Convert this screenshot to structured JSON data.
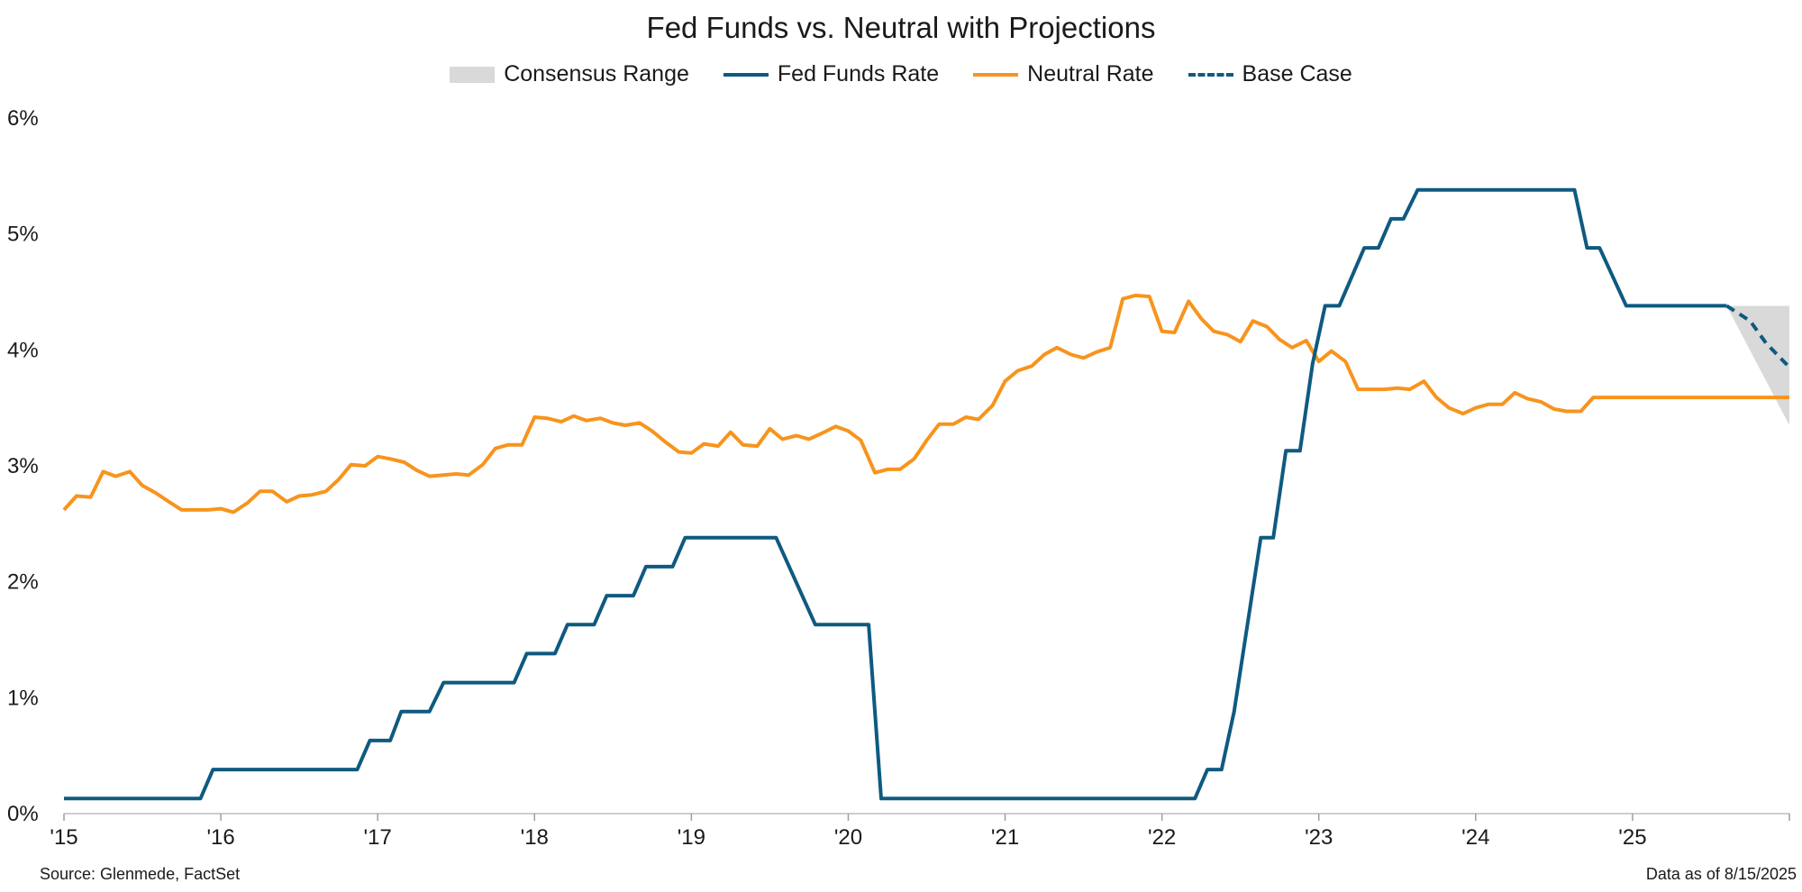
{
  "chart_data": {
    "type": "line",
    "title": "Fed Funds vs. Neutral with Projections",
    "xlabel": "",
    "ylabel": "",
    "xlim": [
      2015.0,
      2026.0
    ],
    "ylim": [
      0,
      6
    ],
    "y_ticks": [
      0,
      1,
      2,
      3,
      4,
      5,
      6
    ],
    "y_tick_labels": [
      "0%",
      "1%",
      "2%",
      "3%",
      "4%",
      "5%",
      "6%"
    ],
    "x_ticks": [
      2015,
      2016,
      2017,
      2018,
      2019,
      2020,
      2021,
      2022,
      2023,
      2024,
      2025
    ],
    "x_tick_labels": [
      "'15",
      "'16",
      "'17",
      "'18",
      "'19",
      "'20",
      "'21",
      "'22",
      "'23",
      "'24",
      "'25"
    ],
    "grid": false,
    "legend_position": "top-center",
    "legend": [
      "Consensus Range",
      "Fed Funds Rate",
      "Neutral Rate",
      "Base Case"
    ],
    "colors": {
      "fed_funds": "#0f5a80",
      "neutral": "#f7941d",
      "base_case": "#0f5a80",
      "consensus": "#d9d9d9"
    },
    "series": [
      {
        "name": "Fed Funds Rate",
        "points": [
          [
            2015.0,
            0.13
          ],
          [
            2015.87,
            0.13
          ],
          [
            2015.95,
            0.38
          ],
          [
            2016.87,
            0.38
          ],
          [
            2016.95,
            0.63
          ],
          [
            2017.08,
            0.63
          ],
          [
            2017.15,
            0.88
          ],
          [
            2017.33,
            0.88
          ],
          [
            2017.42,
            1.13
          ],
          [
            2017.87,
            1.13
          ],
          [
            2017.95,
            1.38
          ],
          [
            2018.13,
            1.38
          ],
          [
            2018.21,
            1.63
          ],
          [
            2018.38,
            1.63
          ],
          [
            2018.46,
            1.88
          ],
          [
            2018.63,
            1.88
          ],
          [
            2018.71,
            2.13
          ],
          [
            2018.88,
            2.13
          ],
          [
            2018.96,
            2.38
          ],
          [
            2019.54,
            2.38
          ],
          [
            2019.79,
            1.63
          ],
          [
            2020.13,
            1.63
          ],
          [
            2020.21,
            0.13
          ],
          [
            2022.21,
            0.13
          ],
          [
            2022.29,
            0.38
          ],
          [
            2022.38,
            0.38
          ],
          [
            2022.46,
            0.88
          ],
          [
            2022.63,
            2.38
          ],
          [
            2022.71,
            2.38
          ],
          [
            2022.79,
            3.13
          ],
          [
            2022.88,
            3.13
          ],
          [
            2022.96,
            3.88
          ],
          [
            2023.04,
            4.38
          ],
          [
            2023.13,
            4.38
          ],
          [
            2023.29,
            4.88
          ],
          [
            2023.38,
            4.88
          ],
          [
            2023.46,
            5.13
          ],
          [
            2023.54,
            5.13
          ],
          [
            2023.63,
            5.38
          ],
          [
            2024.63,
            5.38
          ],
          [
            2024.71,
            4.88
          ],
          [
            2024.79,
            4.88
          ],
          [
            2024.96,
            4.38
          ],
          [
            2025.6,
            4.38
          ]
        ]
      },
      {
        "name": "Neutral Rate",
        "points": [
          [
            2015.0,
            2.62
          ],
          [
            2015.08,
            2.74
          ],
          [
            2015.17,
            2.73
          ],
          [
            2015.25,
            2.95
          ],
          [
            2015.33,
            2.91
          ],
          [
            2015.42,
            2.95
          ],
          [
            2015.5,
            2.83
          ],
          [
            2015.58,
            2.77
          ],
          [
            2015.67,
            2.69
          ],
          [
            2015.75,
            2.62
          ],
          [
            2015.83,
            2.62
          ],
          [
            2015.92,
            2.62
          ],
          [
            2016.0,
            2.63
          ],
          [
            2016.08,
            2.6
          ],
          [
            2016.17,
            2.68
          ],
          [
            2016.25,
            2.78
          ],
          [
            2016.33,
            2.78
          ],
          [
            2016.42,
            2.69
          ],
          [
            2016.5,
            2.74
          ],
          [
            2016.58,
            2.75
          ],
          [
            2016.67,
            2.78
          ],
          [
            2016.75,
            2.88
          ],
          [
            2016.83,
            3.01
          ],
          [
            2016.92,
            3.0
          ],
          [
            2017.0,
            3.08
          ],
          [
            2017.08,
            3.06
          ],
          [
            2017.17,
            3.03
          ],
          [
            2017.25,
            2.96
          ],
          [
            2017.33,
            2.91
          ],
          [
            2017.42,
            2.92
          ],
          [
            2017.5,
            2.93
          ],
          [
            2017.58,
            2.92
          ],
          [
            2017.67,
            3.01
          ],
          [
            2017.75,
            3.15
          ],
          [
            2017.83,
            3.18
          ],
          [
            2017.92,
            3.18
          ],
          [
            2018.0,
            3.42
          ],
          [
            2018.08,
            3.41
          ],
          [
            2018.17,
            3.38
          ],
          [
            2018.25,
            3.43
          ],
          [
            2018.33,
            3.39
          ],
          [
            2018.42,
            3.41
          ],
          [
            2018.5,
            3.37
          ],
          [
            2018.58,
            3.35
          ],
          [
            2018.67,
            3.37
          ],
          [
            2018.75,
            3.3
          ],
          [
            2018.83,
            3.21
          ],
          [
            2018.92,
            3.12
          ],
          [
            2019.0,
            3.11
          ],
          [
            2019.08,
            3.19
          ],
          [
            2019.17,
            3.17
          ],
          [
            2019.25,
            3.29
          ],
          [
            2019.33,
            3.18
          ],
          [
            2019.42,
            3.17
          ],
          [
            2019.5,
            3.32
          ],
          [
            2019.58,
            3.23
          ],
          [
            2019.67,
            3.26
          ],
          [
            2019.75,
            3.23
          ],
          [
            2019.83,
            3.28
          ],
          [
            2019.92,
            3.34
          ],
          [
            2020.0,
            3.3
          ],
          [
            2020.08,
            3.22
          ],
          [
            2020.17,
            2.94
          ],
          [
            2020.25,
            2.97
          ],
          [
            2020.33,
            2.97
          ],
          [
            2020.42,
            3.06
          ],
          [
            2020.5,
            3.22
          ],
          [
            2020.58,
            3.36
          ],
          [
            2020.67,
            3.36
          ],
          [
            2020.75,
            3.42
          ],
          [
            2020.83,
            3.4
          ],
          [
            2020.92,
            3.52
          ],
          [
            2021.0,
            3.73
          ],
          [
            2021.08,
            3.82
          ],
          [
            2021.17,
            3.86
          ],
          [
            2021.25,
            3.96
          ],
          [
            2021.33,
            4.02
          ],
          [
            2021.42,
            3.96
          ],
          [
            2021.5,
            3.93
          ],
          [
            2021.58,
            3.98
          ],
          [
            2021.67,
            4.02
          ],
          [
            2021.75,
            4.44
          ],
          [
            2021.83,
            4.47
          ],
          [
            2021.92,
            4.46
          ],
          [
            2022.0,
            4.16
          ],
          [
            2022.08,
            4.15
          ],
          [
            2022.17,
            4.42
          ],
          [
            2022.25,
            4.27
          ],
          [
            2022.33,
            4.16
          ],
          [
            2022.42,
            4.13
          ],
          [
            2022.5,
            4.07
          ],
          [
            2022.58,
            4.25
          ],
          [
            2022.67,
            4.2
          ],
          [
            2022.75,
            4.09
          ],
          [
            2022.83,
            4.02
          ],
          [
            2022.92,
            4.08
          ],
          [
            2023.0,
            3.9
          ],
          [
            2023.08,
            3.99
          ],
          [
            2023.17,
            3.9
          ],
          [
            2023.25,
            3.66
          ],
          [
            2023.33,
            3.66
          ],
          [
            2023.42,
            3.66
          ],
          [
            2023.5,
            3.67
          ],
          [
            2023.58,
            3.66
          ],
          [
            2023.67,
            3.73
          ],
          [
            2023.75,
            3.59
          ],
          [
            2023.83,
            3.5
          ],
          [
            2023.92,
            3.45
          ],
          [
            2024.0,
            3.5
          ],
          [
            2024.08,
            3.53
          ],
          [
            2024.17,
            3.53
          ],
          [
            2024.25,
            3.63
          ],
          [
            2024.33,
            3.58
          ],
          [
            2024.42,
            3.55
          ],
          [
            2024.5,
            3.49
          ],
          [
            2024.58,
            3.47
          ],
          [
            2024.67,
            3.47
          ],
          [
            2024.75,
            3.59
          ],
          [
            2026.0,
            3.59
          ]
        ]
      },
      {
        "name": "Base Case",
        "points": [
          [
            2025.6,
            4.38
          ],
          [
            2025.75,
            4.25
          ],
          [
            2025.85,
            4.06
          ],
          [
            2026.0,
            3.85
          ]
        ]
      }
    ],
    "bands": [
      {
        "name": "Consensus Range",
        "x": [
          2025.6,
          2026.0
        ],
        "upper": [
          4.38,
          4.38
        ],
        "lower": [
          4.38,
          3.35
        ]
      }
    ]
  },
  "footer": {
    "source": "Source: Glenmede, FactSet",
    "data_date": "Data as of 8/15/2025"
  }
}
